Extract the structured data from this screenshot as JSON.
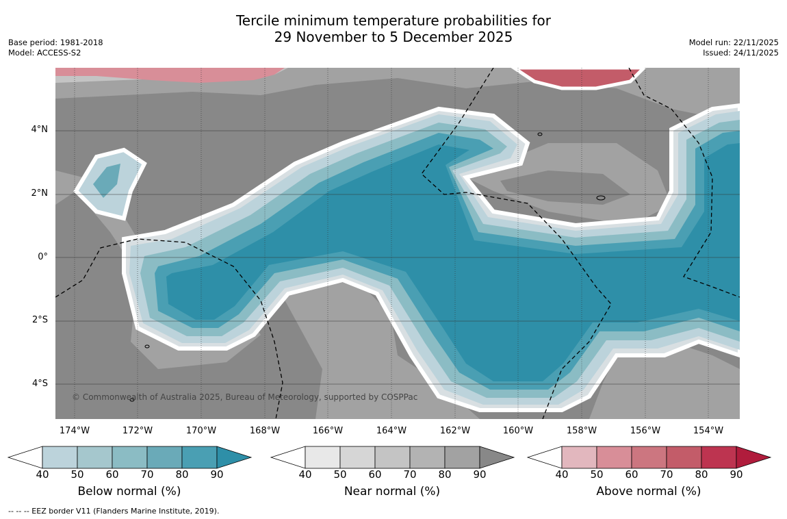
{
  "title": {
    "line1": "Tercile minimum temperature probabilities for",
    "line2": "29 November to 5 December 2025"
  },
  "meta": {
    "base_period": "Base period: 1981-2018",
    "model": "Model: ACCESS-S2",
    "model_run": "Model run: 22/11/2025",
    "issued": "Issued: 24/11/2025"
  },
  "map": {
    "latitude_labels": [
      "4°N",
      "2°N",
      "0°",
      "2°S",
      "4°S"
    ],
    "longitude_labels": [
      "174°W",
      "172°W",
      "170°W",
      "168°W",
      "166°W",
      "164°W",
      "162°W",
      "160°W",
      "158°W",
      "156°W",
      "154°W"
    ],
    "copyright": "© Commonwealth of Australia 2025, Bureau of Meteorology, supported by COSPPac"
  },
  "colorbars": [
    {
      "name": "below",
      "label": "Below normal (%)",
      "ticks": [
        "40",
        "50",
        "60",
        "70",
        "80",
        "90"
      ],
      "colors": [
        "#ffffff",
        "#bcd3db",
        "#a5c7cd",
        "#8bbcc4",
        "#6aaab8",
        "#4a9fb3",
        "#2e8fa8"
      ]
    },
    {
      "name": "near",
      "label": "Near normal (%)",
      "ticks": [
        "40",
        "50",
        "60",
        "70",
        "80",
        "90"
      ],
      "colors": [
        "#ffffff",
        "#e8e8e8",
        "#d6d6d6",
        "#c4c4c4",
        "#b3b3b3",
        "#a2a2a2",
        "#888888"
      ]
    },
    {
      "name": "above",
      "label": "Above normal (%)",
      "ticks": [
        "40",
        "50",
        "60",
        "70",
        "80",
        "90"
      ],
      "colors": [
        "#ffffff",
        "#e2b7be",
        "#d88e98",
        "#cc7680",
        "#c35c69",
        "#bd3450",
        "#b01c3c"
      ]
    }
  ],
  "footnote": "-- -- -- EEZ border V11 (Flanders Marine Institute, 2019)."
}
